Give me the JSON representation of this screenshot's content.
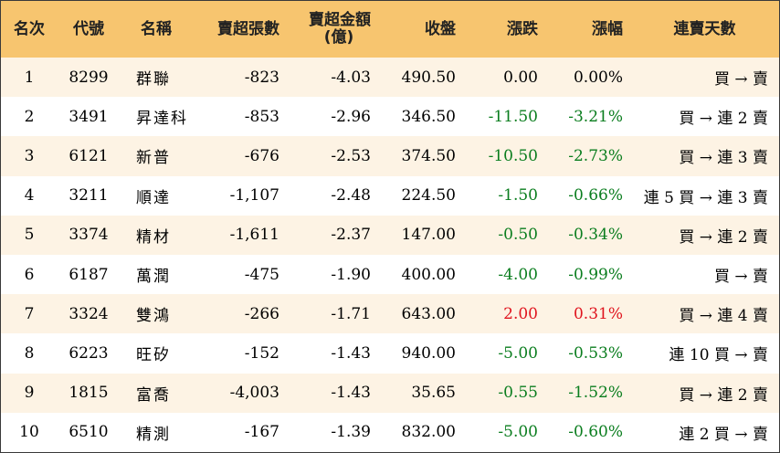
{
  "table": {
    "headers": {
      "rank": "名次",
      "code": "代號",
      "name": "名稱",
      "net_lots": "賣超張數",
      "net_amount": "賣超金額",
      "net_amount_unit": "(億)",
      "close": "收盤",
      "change": "漲跌",
      "change_pct": "漲幅",
      "streak": "連賣天數"
    },
    "rows": [
      {
        "rank": "1",
        "code": "8299",
        "name": "群聯",
        "net_lots": "-823",
        "net_amount": "-4.03",
        "close": "490.50",
        "change": "0.00",
        "change_pct": "0.00%",
        "streak": "買 → 賣",
        "trend": "flat"
      },
      {
        "rank": "2",
        "code": "3491",
        "name": "昇達科",
        "net_lots": "-853",
        "net_amount": "-2.96",
        "close": "346.50",
        "change": "-11.50",
        "change_pct": "-3.21%",
        "streak": "買 → 連 2 賣",
        "trend": "down"
      },
      {
        "rank": "3",
        "code": "6121",
        "name": "新普",
        "net_lots": "-676",
        "net_amount": "-2.53",
        "close": "374.50",
        "change": "-10.50",
        "change_pct": "-2.73%",
        "streak": "買 → 連 3 賣",
        "trend": "down"
      },
      {
        "rank": "4",
        "code": "3211",
        "name": "順達",
        "net_lots": "-1,107",
        "net_amount": "-2.48",
        "close": "224.50",
        "change": "-1.50",
        "change_pct": "-0.66%",
        "streak": "連 5 買 → 連 3 賣",
        "trend": "down"
      },
      {
        "rank": "5",
        "code": "3374",
        "name": "精材",
        "net_lots": "-1,611",
        "net_amount": "-2.37",
        "close": "147.00",
        "change": "-0.50",
        "change_pct": "-0.34%",
        "streak": "買 → 連 2 賣",
        "trend": "down"
      },
      {
        "rank": "6",
        "code": "6187",
        "name": "萬潤",
        "net_lots": "-475",
        "net_amount": "-1.90",
        "close": "400.00",
        "change": "-4.00",
        "change_pct": "-0.99%",
        "streak": "買 → 賣",
        "trend": "down"
      },
      {
        "rank": "7",
        "code": "3324",
        "name": "雙鴻",
        "net_lots": "-266",
        "net_amount": "-1.71",
        "close": "643.00",
        "change": "2.00",
        "change_pct": "0.31%",
        "streak": "買 → 連 4 賣",
        "trend": "up"
      },
      {
        "rank": "8",
        "code": "6223",
        "name": "旺矽",
        "net_lots": "-152",
        "net_amount": "-1.43",
        "close": "940.00",
        "change": "-5.00",
        "change_pct": "-0.53%",
        "streak": "連 10 買 → 賣",
        "trend": "down"
      },
      {
        "rank": "9",
        "code": "1815",
        "name": "富喬",
        "net_lots": "-4,003",
        "net_amount": "-1.43",
        "close": "35.65",
        "change": "-0.55",
        "change_pct": "-1.52%",
        "streak": "買 → 連 2 賣",
        "trend": "down"
      },
      {
        "rank": "10",
        "code": "6510",
        "name": "精測",
        "net_lots": "-167",
        "net_amount": "-1.39",
        "close": "832.00",
        "change": "-5.00",
        "change_pct": "-0.60%",
        "streak": "連 2 買 → 賣",
        "trend": "down"
      }
    ]
  },
  "colors": {
    "header_bg": "#f7c56f",
    "stripe_bg": "#fdf3e4",
    "up": "#e0141e",
    "down": "#0a7d1e",
    "flat": "#000000"
  }
}
